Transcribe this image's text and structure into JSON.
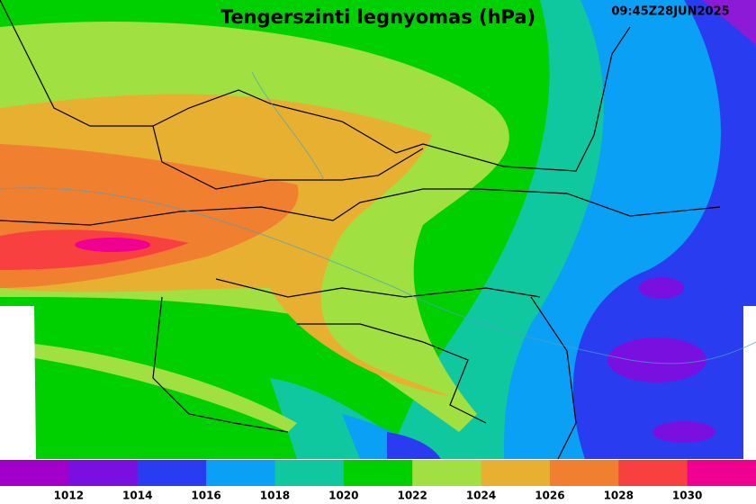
{
  "header": {
    "title": "Tengerszinti legnyomas (hPa)",
    "timestamp": "09:45Z28JUN2025"
  },
  "legend": {
    "levels": [
      1012,
      1014,
      1016,
      1018,
      1020,
      1022,
      1024,
      1026,
      1028,
      1030
    ],
    "colors": [
      "#a000c8",
      "#7a10e0",
      "#2a3cf0",
      "#0aa0f5",
      "#10c8a0",
      "#00d000",
      "#a0e040",
      "#e8b030",
      "#f08030",
      "#f84040",
      "#f00090"
    ]
  }
}
